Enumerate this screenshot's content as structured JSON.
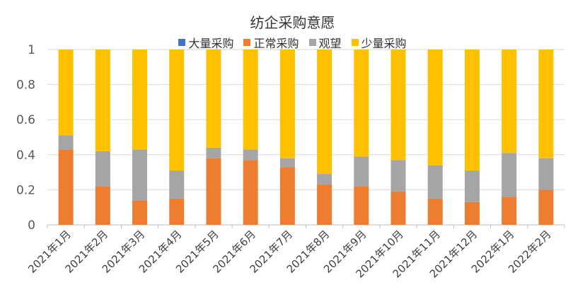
{
  "chart_data": {
    "type": "bar",
    "stacked": true,
    "title": "纺企采购意愿",
    "categories": [
      "2021年1月",
      "2021年2月",
      "2021年3月",
      "2021年4月",
      "2021年5月",
      "2021年6月",
      "2021年7月",
      "2021年8月",
      "2021年9月",
      "2021年10月",
      "2021年11月",
      "2021年12月",
      "2022年1月",
      "2022年2月"
    ],
    "series": [
      {
        "name": "大量采购",
        "color": "#4472C4",
        "values": [
          0,
          0,
          0,
          0,
          0,
          0,
          0,
          0,
          0,
          0,
          0,
          0,
          0,
          0
        ]
      },
      {
        "name": "正常采购",
        "color": "#ED7D31",
        "values": [
          0.43,
          0.22,
          0.14,
          0.15,
          0.38,
          0.37,
          0.33,
          0.23,
          0.22,
          0.19,
          0.15,
          0.13,
          0.16,
          0.2
        ]
      },
      {
        "name": "观望",
        "color": "#A5A5A5",
        "values": [
          0.08,
          0.2,
          0.29,
          0.16,
          0.06,
          0.06,
          0.05,
          0.06,
          0.17,
          0.18,
          0.19,
          0.18,
          0.25,
          0.18
        ]
      },
      {
        "name": "少量采购",
        "color": "#FFC000",
        "values": [
          0.49,
          0.58,
          0.57,
          0.69,
          0.56,
          0.57,
          0.62,
          0.71,
          0.61,
          0.63,
          0.66,
          0.69,
          0.59,
          0.62
        ]
      }
    ],
    "ylim": [
      0,
      1
    ],
    "yticks": [
      "0",
      "0.2",
      "0.4",
      "0.6",
      "0.8",
      "1"
    ],
    "grid": true,
    "legend_position": "top"
  }
}
